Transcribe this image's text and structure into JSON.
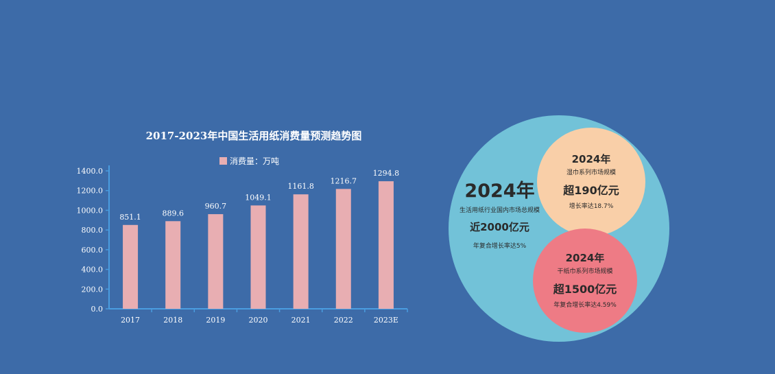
{
  "colors": {
    "background": "#3d6ba8",
    "bar": "#e8aeb2",
    "axis": "#4a9de0",
    "big_circle": "#72c2d8",
    "orange_circle": "#f9cfa8",
    "red_circle": "#ee7b85"
  },
  "chart_data": {
    "type": "bar",
    "title": "2017-2023年中国生活用纸消费量预测趋势图",
    "legend_label": "消费量：万吨",
    "legend_position": "top-center",
    "categories": [
      "2017",
      "2018",
      "2019",
      "2020",
      "2021",
      "2022",
      "2023E"
    ],
    "series": [
      {
        "name": "消费量：万吨",
        "values": [
          851.1,
          889.6,
          960.7,
          1049.1,
          1161.8,
          1216.7,
          1294.8
        ]
      }
    ],
    "value_labels": [
      "851.1",
      "889.6",
      "960.7",
      "1049.1",
      "1161.8",
      "1216.7",
      "1294.8"
    ],
    "yticks": [
      0,
      200,
      400,
      600,
      800,
      1000,
      1200,
      1400
    ],
    "ytick_labels": [
      "0.0",
      "200.0",
      "400.0",
      "600.0",
      "800.0",
      "1000.0",
      "1200.0",
      "1400.0"
    ],
    "ylim": [
      0,
      1400
    ],
    "grid": false
  },
  "infographic": {
    "total": {
      "year": "2024年",
      "subtitle": "生活用纸行业国内市场总规模",
      "value": "近2000亿元",
      "rate": "年复合增长率达5%"
    },
    "wet_wipes": {
      "year": "2024年",
      "subtitle": "湿巾系列市场规模",
      "value": "超190亿元",
      "rate": "增长率达18.7%"
    },
    "dry_tissue": {
      "year": "2024年",
      "subtitle": "干纸巾系列市场规模",
      "value": "超1500亿元",
      "rate": "年复合增长率达4.59%"
    }
  }
}
